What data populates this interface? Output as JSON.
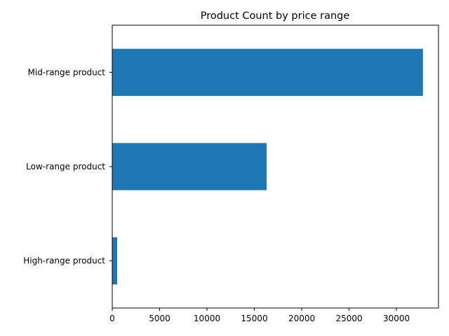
{
  "chart_data": {
    "type": "bar",
    "orientation": "horizontal",
    "title": "Product Count by price range",
    "xlabel": "",
    "ylabel": "",
    "categories": [
      "High-range product",
      "Low-range product",
      "Mid-range product"
    ],
    "values": [
      520,
      16300,
      32800
    ],
    "xlim": [
      0,
      34440
    ],
    "xticks": [
      0,
      5000,
      10000,
      15000,
      20000,
      25000,
      30000
    ],
    "bar_color": "#1f77b4",
    "grid": false,
    "legend": "none"
  }
}
